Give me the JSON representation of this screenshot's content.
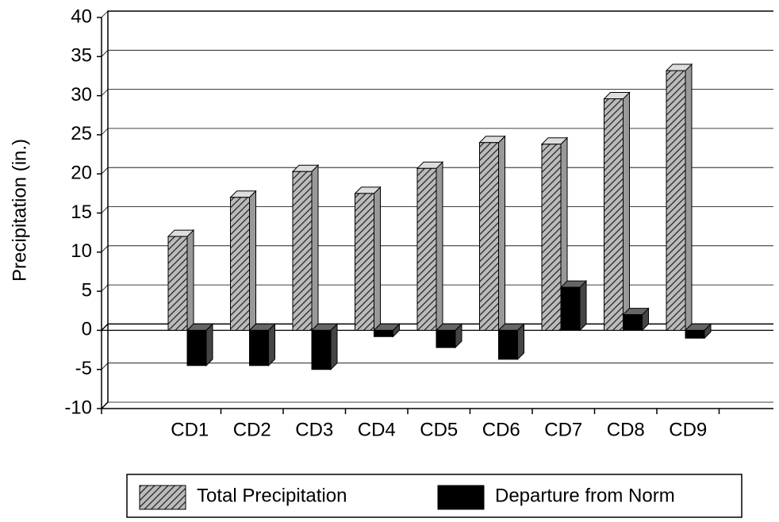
{
  "chart_data": {
    "type": "bar",
    "y_label": "Precipitation (in.)",
    "categories": [
      "CD1",
      "CD2",
      "CD3",
      "CD4",
      "CD5",
      "CD6",
      "CD7",
      "CD8",
      "CD9"
    ],
    "series": [
      {
        "name": "Total Precipitation",
        "color": "#888888",
        "values": [
          12,
          17,
          20.3,
          17.5,
          20.7,
          24,
          23.8,
          29.6,
          33.2
        ]
      },
      {
        "name": "Departure from Norm",
        "color": "#000000",
        "values": [
          -4.5,
          -4.5,
          -5,
          -0.8,
          -2.2,
          -3.7,
          5.5,
          2,
          -1
        ]
      }
    ],
    "ylim": [
      -10,
      40
    ],
    "yticks": [
      -10,
      -5,
      0,
      5,
      10,
      15,
      20,
      25,
      30,
      35,
      40
    ],
    "grid": true,
    "legend": "bottom"
  }
}
